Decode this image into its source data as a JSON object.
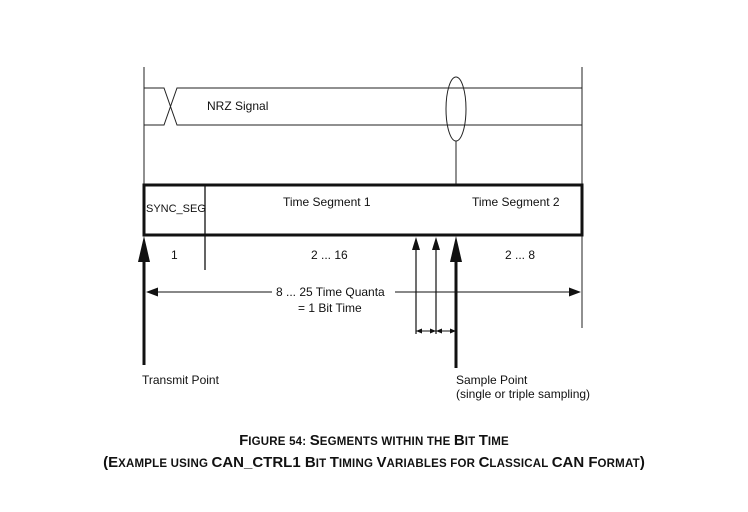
{
  "signal": {
    "label": "NRZ Signal"
  },
  "segments": {
    "sync": {
      "name": "SYNC_SEG",
      "quanta": "1"
    },
    "ts1": {
      "name": "Time Segment 1",
      "quanta": "2 ... 16"
    },
    "ts2": {
      "name": "Time Segment 2",
      "quanta": "2 ... 8"
    }
  },
  "bit_time": {
    "line1": "8 ... 25 Time Quanta",
    "line2": "= 1 Bit Time"
  },
  "points": {
    "transmit": "Transmit Point",
    "sample": "Sample Point",
    "sample_note": "(single or triple sampling)"
  },
  "caption": {
    "line1": [
      {
        "text": "F",
        "style": "big"
      },
      {
        "text": "IGURE 54:  ",
        "style": "sc"
      },
      {
        "text": "S",
        "style": "big"
      },
      {
        "text": "EGMENTS WITHIN THE ",
        "style": "sc"
      },
      {
        "text": "B",
        "style": "big"
      },
      {
        "text": "IT ",
        "style": "sc"
      },
      {
        "text": "T",
        "style": "big"
      },
      {
        "text": "IME",
        "style": "sc"
      }
    ],
    "line2": [
      {
        "text": "(E",
        "style": "big"
      },
      {
        "text": "XAMPLE USING ",
        "style": "sc"
      },
      {
        "text": "CAN_CTRL1 B",
        "style": "big"
      },
      {
        "text": "IT ",
        "style": "sc"
      },
      {
        "text": "T",
        "style": "big"
      },
      {
        "text": "IMING ",
        "style": "sc"
      },
      {
        "text": "V",
        "style": "big"
      },
      {
        "text": "ARIABLES FOR ",
        "style": "sc"
      },
      {
        "text": "C",
        "style": "big"
      },
      {
        "text": "LASSICAL ",
        "style": "sc"
      },
      {
        "text": "CAN F",
        "style": "big"
      },
      {
        "text": "ORMAT",
        "style": "sc"
      },
      {
        "text": ")",
        "style": "big"
      }
    ]
  }
}
